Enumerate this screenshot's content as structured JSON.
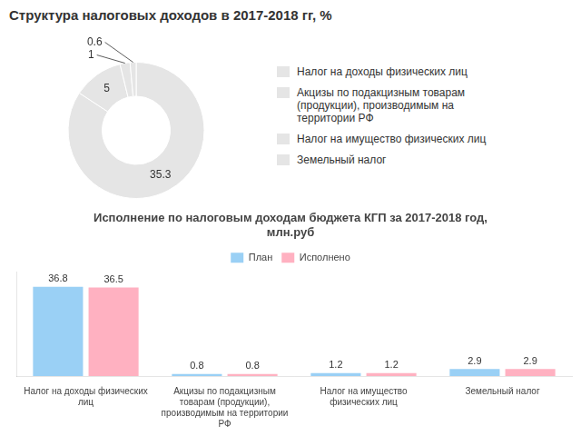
{
  "chart_data": [
    {
      "type": "doughnut",
      "title": "Структура налоговых доходов в 2017-2018 гг, %",
      "categories": [
        "Налог на доходы физических лиц",
        "Акцизы по подакцизным товарам\n(продукции), производимым на\nтерритории РФ",
        "Налог на имущество физических лиц",
        "Земельный налог"
      ],
      "values": [
        35.3,
        5,
        1,
        0.6
      ],
      "data_labels": true,
      "legend": "right"
    },
    {
      "type": "bar",
      "title": "Исполнение по налоговым доходам бюджета КГП за 2017-2018 год,\nмлн.руб",
      "categories": [
        "Налог на доходы физических\nлиц",
        "Акцизы по подакцизным\nтоварам (продукции),\nпроизводимым на территории\nРФ",
        "Налог на имущество\nфизических лиц",
        "Земельный налог"
      ],
      "series": [
        {
          "name": "План",
          "values": [
            36.8,
            0.8,
            1.2,
            2.9
          ]
        },
        {
          "name": "Исполнено",
          "values": [
            36.5,
            0.8,
            1.2,
            2.9
          ]
        }
      ],
      "ylim": [
        0,
        43
      ],
      "grid": false,
      "data_labels": true,
      "legend": "top",
      "tick_labels": "x"
    }
  ]
}
